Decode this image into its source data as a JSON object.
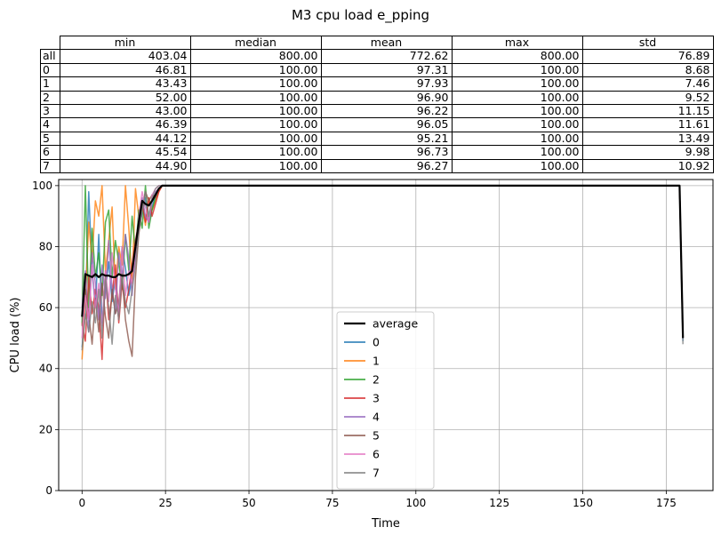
{
  "title": "M3 cpu load e_pping",
  "table": {
    "columns": [
      "min",
      "median",
      "mean",
      "max",
      "std"
    ],
    "rows": [
      {
        "label": "all",
        "values": [
          "403.04",
          "800.00",
          "772.62",
          "800.00",
          "76.89"
        ]
      },
      {
        "label": "0",
        "values": [
          "46.81",
          "100.00",
          "97.31",
          "100.00",
          "8.68"
        ]
      },
      {
        "label": "1",
        "values": [
          "43.43",
          "100.00",
          "97.93",
          "100.00",
          "7.46"
        ]
      },
      {
        "label": "2",
        "values": [
          "52.00",
          "100.00",
          "96.90",
          "100.00",
          "9.52"
        ]
      },
      {
        "label": "3",
        "values": [
          "43.00",
          "100.00",
          "96.22",
          "100.00",
          "11.15"
        ]
      },
      {
        "label": "4",
        "values": [
          "46.39",
          "100.00",
          "96.05",
          "100.00",
          "11.61"
        ]
      },
      {
        "label": "5",
        "values": [
          "44.12",
          "100.00",
          "95.21",
          "100.00",
          "13.49"
        ]
      },
      {
        "label": "6",
        "values": [
          "45.54",
          "100.00",
          "96.73",
          "100.00",
          "9.98"
        ]
      },
      {
        "label": "7",
        "values": [
          "44.90",
          "100.00",
          "96.27",
          "100.00",
          "10.92"
        ]
      }
    ]
  },
  "chart_data": {
    "type": "line",
    "title": "M3 cpu load e_pping",
    "xlabel": "Time",
    "ylabel": "CPU load (%)",
    "xlim": [
      -7,
      189
    ],
    "ylim": [
      0,
      102
    ],
    "xticks": [
      0,
      25,
      50,
      75,
      100,
      125,
      150,
      175
    ],
    "yticks": [
      0,
      20,
      40,
      60,
      80,
      100
    ],
    "grid": true,
    "legend_position": "center",
    "series": [
      {
        "name": "average",
        "color": "#000000",
        "width": 2.2,
        "x": [
          0,
          1,
          2,
          3,
          4,
          5,
          6,
          7,
          8,
          9,
          10,
          11,
          12,
          13,
          14,
          15,
          16,
          17,
          18,
          19,
          20,
          21,
          22,
          23,
          24,
          25,
          179,
          180
        ],
        "y": [
          57,
          71,
          70.5,
          70,
          71,
          70,
          71,
          70.5,
          70.5,
          70,
          70,
          71,
          70.5,
          70.5,
          71,
          72,
          80,
          88,
          95,
          94,
          93.5,
          95,
          97,
          99,
          100,
          100,
          100,
          50
        ]
      },
      {
        "name": "0",
        "color": "#1f77b4",
        "width": 1.5,
        "x": [
          0,
          1,
          2,
          3,
          4,
          5,
          6,
          7,
          8,
          9,
          10,
          11,
          12,
          13,
          14,
          15,
          16,
          17,
          18,
          19,
          20,
          21,
          22,
          23,
          24,
          25,
          101,
          179,
          180
        ],
        "y": [
          47,
          58,
          98,
          72,
          60,
          84,
          55,
          66,
          75,
          62,
          70,
          58,
          80,
          73,
          64,
          70,
          76,
          85,
          91,
          96,
          88,
          93,
          97,
          99,
          100,
          100,
          100,
          100,
          49
        ]
      },
      {
        "name": "1",
        "color": "#ff7f0e",
        "width": 1.5,
        "x": [
          0,
          1,
          2,
          3,
          4,
          5,
          6,
          7,
          8,
          9,
          10,
          11,
          12,
          13,
          14,
          15,
          16,
          17,
          18,
          19,
          20,
          21,
          22,
          23,
          24,
          25,
          40,
          109,
          173,
          179,
          180
        ],
        "y": [
          43,
          62,
          88,
          75,
          95,
          90,
          100,
          72,
          82,
          93,
          66,
          80,
          74,
          100,
          86,
          68,
          99,
          90,
          94,
          87,
          96,
          92,
          95,
          98,
          100,
          100,
          100,
          100,
          100,
          100,
          50
        ]
      },
      {
        "name": "2",
        "color": "#2ca02c",
        "width": 1.5,
        "x": [
          0,
          1,
          2,
          3,
          4,
          5,
          6,
          7,
          8,
          9,
          10,
          11,
          12,
          13,
          14,
          15,
          16,
          17,
          18,
          19,
          20,
          21,
          22,
          23,
          24,
          25,
          179,
          180
        ],
        "y": [
          55,
          100,
          60,
          86,
          70,
          78,
          64,
          88,
          92,
          70,
          82,
          75,
          66,
          84,
          72,
          90,
          78,
          92,
          86,
          100,
          86,
          92,
          96,
          99,
          100,
          100,
          100,
          50
        ]
      },
      {
        "name": "3",
        "color": "#d62728",
        "width": 1.5,
        "x": [
          0,
          1,
          2,
          3,
          4,
          5,
          6,
          7,
          8,
          9,
          10,
          11,
          12,
          13,
          14,
          15,
          16,
          17,
          18,
          19,
          20,
          21,
          22,
          23,
          24,
          25,
          82,
          179,
          180
        ],
        "y": [
          55,
          49,
          70,
          58,
          66,
          60,
          43,
          72,
          56,
          64,
          74,
          55,
          68,
          60,
          66,
          74,
          82,
          88,
          95,
          88,
          96,
          90,
          94,
          98,
          100,
          100,
          100,
          100,
          50
        ]
      },
      {
        "name": "4",
        "color": "#9467bd",
        "width": 1.5,
        "x": [
          0,
          1,
          2,
          3,
          4,
          5,
          6,
          7,
          8,
          9,
          10,
          11,
          12,
          13,
          14,
          15,
          16,
          17,
          18,
          19,
          20,
          21,
          22,
          23,
          24,
          25,
          179,
          180
        ],
        "y": [
          60,
          72,
          52,
          78,
          68,
          56,
          74,
          63,
          82,
          66,
          58,
          78,
          70,
          84,
          76,
          64,
          80,
          86,
          96,
          90,
          88,
          95,
          98,
          99,
          100,
          100,
          100,
          50
        ]
      },
      {
        "name": "5",
        "color": "#8c564b",
        "width": 1.5,
        "x": [
          0,
          1,
          2,
          3,
          4,
          5,
          6,
          7,
          8,
          9,
          10,
          11,
          12,
          13,
          14,
          15,
          16,
          17,
          18,
          19,
          20,
          21,
          22,
          23,
          24,
          25,
          116,
          141,
          179,
          180
        ],
        "y": [
          54,
          66,
          58,
          48,
          63,
          52,
          68,
          57,
          50,
          66,
          58,
          62,
          71,
          56,
          49,
          44,
          70,
          84,
          92,
          98,
          95,
          97,
          96,
          99,
          100,
          100,
          100,
          100,
          100,
          50
        ]
      },
      {
        "name": "6",
        "color": "#e377c2",
        "width": 1.5,
        "x": [
          0,
          1,
          2,
          3,
          4,
          5,
          6,
          7,
          8,
          9,
          10,
          11,
          12,
          13,
          14,
          15,
          16,
          17,
          18,
          19,
          20,
          21,
          22,
          23,
          24,
          25,
          179,
          180
        ],
        "y": [
          50,
          64,
          56,
          74,
          60,
          68,
          54,
          72,
          62,
          78,
          66,
          58,
          80,
          64,
          72,
          68,
          76,
          90,
          98,
          93,
          88,
          97,
          99,
          100,
          100,
          100,
          100,
          50
        ]
      },
      {
        "name": "7",
        "color": "#7f7f7f",
        "width": 1.5,
        "x": [
          0,
          1,
          2,
          3,
          4,
          5,
          6,
          7,
          8,
          9,
          10,
          11,
          12,
          13,
          14,
          15,
          16,
          17,
          18,
          19,
          20,
          21,
          22,
          23,
          24,
          25,
          131,
          179,
          180
        ],
        "y": [
          46,
          58,
          52,
          62,
          55,
          66,
          50,
          70,
          60,
          48,
          64,
          56,
          70,
          62,
          58,
          66,
          74,
          86,
          92,
          98,
          90,
          96,
          99,
          100,
          100,
          100,
          100,
          100,
          48
        ]
      }
    ]
  }
}
